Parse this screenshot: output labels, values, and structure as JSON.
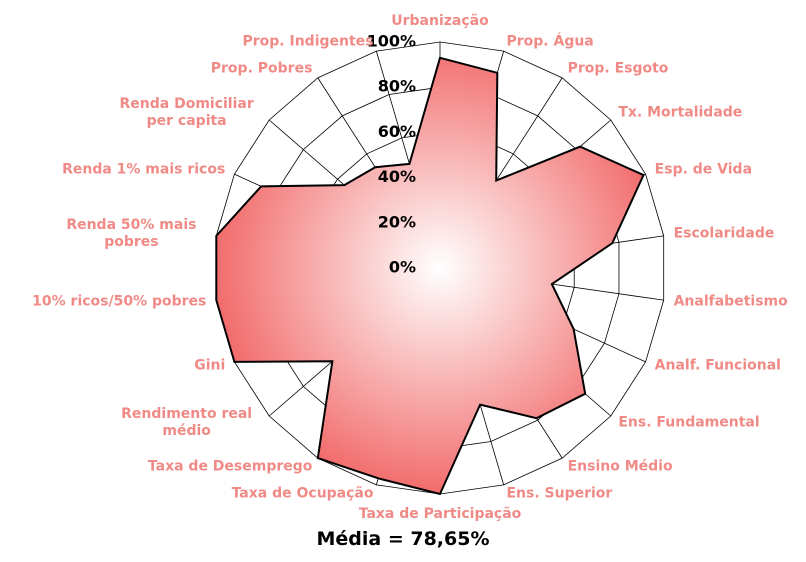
{
  "chart_data": {
    "type": "radar",
    "categories": [
      "Urbanização",
      "Prop. Água",
      "Prop. Esgoto",
      "Tx. Mortalidade",
      "Esp. de Vida",
      "Escolaridade",
      "Analfabetismo",
      "Analf. Funcional",
      "Ens. Fundamental",
      "Ensino Médio",
      "Ens. Superior",
      "Taxa de Participação",
      "Taxa de Ocupação",
      "Taxa de Desemprego",
      "Rendimento real médio",
      "Gini",
      "10% ricos/50% pobres",
      "Renda 50% mais pobres",
      "Renda 1% mais ricos",
      "Renda Domiciliar per capita",
      "Prop. Pobres",
      "Prop. Indigentes"
    ],
    "values": [
      93,
      90,
      46,
      82,
      99,
      77,
      50,
      65,
      85,
      79,
      63,
      100,
      97,
      100,
      63,
      100,
      100,
      100,
      87,
      56,
      53,
      48
    ],
    "color": "#f26b6b",
    "rlim": [
      0,
      100
    ],
    "rticks": [
      {
        "value": 0,
        "label": "0%"
      },
      {
        "value": 20,
        "label": "20%"
      },
      {
        "value": 40,
        "label": "40%"
      },
      {
        "value": 60,
        "label": "60%"
      },
      {
        "value": 80,
        "label": "80%"
      },
      {
        "value": 100,
        "label": "100%"
      }
    ],
    "footer": "Média = 78,65%"
  }
}
